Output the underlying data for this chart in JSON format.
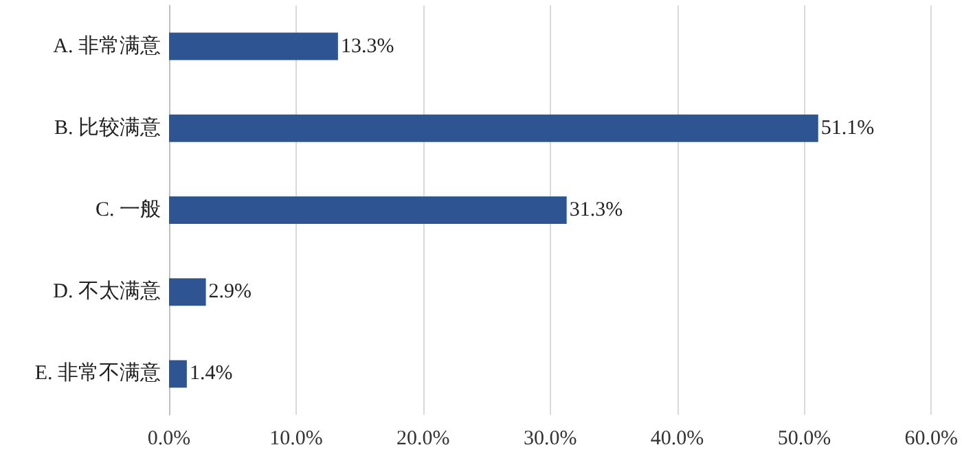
{
  "chart_data": {
    "type": "bar",
    "orientation": "horizontal",
    "categories": [
      "A. 非常满意",
      "B. 比较满意",
      "C. 一般",
      "D. 不太满意",
      "E. 非常不满意"
    ],
    "values": [
      13.3,
      51.1,
      31.3,
      2.9,
      1.4
    ],
    "value_labels": [
      "13.3%",
      "51.1%",
      "31.3%",
      "2.9%",
      "1.4%"
    ],
    "color": "#2e5591",
    "xlim": [
      0,
      60
    ],
    "xticks": [
      {
        "value": 0,
        "label": "0.0%"
      },
      {
        "value": 10,
        "label": "10.0%"
      },
      {
        "value": 20,
        "label": "20.0%"
      },
      {
        "value": 30,
        "label": "30.0%"
      },
      {
        "value": 40,
        "label": "40.0%"
      },
      {
        "value": 50,
        "label": "50.0%"
      },
      {
        "value": 60,
        "label": "60.0%"
      }
    ],
    "grid": "x"
  }
}
